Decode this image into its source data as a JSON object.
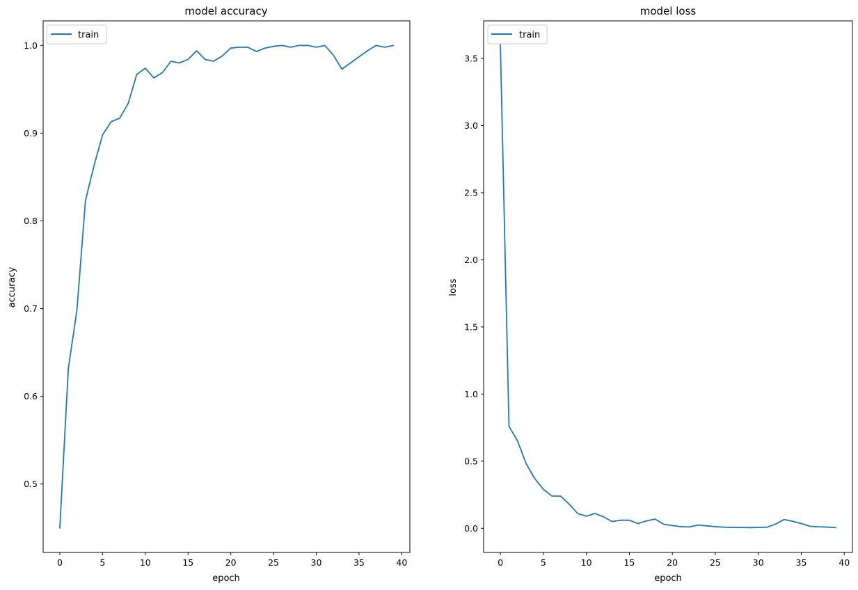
{
  "chart_data": [
    {
      "type": "line",
      "title": "model accuracy",
      "xlabel": "epoch",
      "ylabel": "accuracy",
      "xlim": [
        -1.95,
        40.95
      ],
      "ylim": [
        0.422,
        1.028
      ],
      "xticks": [
        0,
        5,
        10,
        15,
        20,
        25,
        30,
        35,
        40
      ],
      "xtick_labels": [
        "0",
        "5",
        "10",
        "15",
        "20",
        "25",
        "30",
        "35",
        "40"
      ],
      "yticks": [
        0.5,
        0.6,
        0.7,
        0.8,
        0.9,
        1.0
      ],
      "ytick_labels": [
        "0.5",
        "0.6",
        "0.7",
        "0.8",
        "0.9",
        "1.0"
      ],
      "legend": {
        "entries": [
          "train"
        ],
        "placement": "upper left"
      },
      "grid": false,
      "series": [
        {
          "name": "train",
          "color": "#1f77b4",
          "x": [
            0,
            1,
            2,
            3,
            4,
            5,
            6,
            7,
            8,
            9,
            10,
            11,
            12,
            13,
            14,
            15,
            16,
            17,
            18,
            19,
            20,
            21,
            22,
            23,
            24,
            25,
            26,
            27,
            28,
            29,
            30,
            31,
            32,
            33,
            34,
            35,
            36,
            37,
            38,
            39
          ],
          "values": [
            0.45,
            0.632,
            0.698,
            0.823,
            0.863,
            0.898,
            0.913,
            0.917,
            0.934,
            0.967,
            0.974,
            0.963,
            0.969,
            0.982,
            0.98,
            0.984,
            0.994,
            0.984,
            0.982,
            0.988,
            0.997,
            0.998,
            0.998,
            0.993,
            0.997,
            0.999,
            1.0,
            0.998,
            1.0,
            1.0,
            0.998,
            1.0,
            0.989,
            0.973,
            0.98,
            0.987,
            0.994,
            1.0,
            0.998,
            1.0
          ]
        }
      ]
    },
    {
      "type": "line",
      "title": "model loss",
      "xlabel": "epoch",
      "ylabel": "loss",
      "xlim": [
        -1.95,
        40.95
      ],
      "ylim": [
        -0.18,
        3.78
      ],
      "xticks": [
        0,
        5,
        10,
        15,
        20,
        25,
        30,
        35,
        40
      ],
      "xtick_labels": [
        "0",
        "5",
        "10",
        "15",
        "20",
        "25",
        "30",
        "35",
        "40"
      ],
      "yticks": [
        0.0,
        0.5,
        1.0,
        1.5,
        2.0,
        2.5,
        3.0,
        3.5
      ],
      "ytick_labels": [
        "0.0",
        "0.5",
        "1.0",
        "1.5",
        "2.0",
        "2.5",
        "3.0",
        "3.5"
      ],
      "legend": {
        "entries": [
          "train"
        ],
        "placement": "upper left"
      },
      "grid": false,
      "series": [
        {
          "name": "train",
          "color": "#1f77b4",
          "x": [
            0,
            1,
            2,
            3,
            4,
            5,
            6,
            7,
            8,
            9,
            10,
            11,
            12,
            13,
            14,
            15,
            16,
            17,
            18,
            19,
            20,
            21,
            22,
            23,
            24,
            25,
            26,
            27,
            28,
            29,
            30,
            31,
            32,
            33,
            34,
            35,
            36,
            37,
            38,
            39
          ],
          "values": [
            3.6,
            0.76,
            0.65,
            0.48,
            0.37,
            0.29,
            0.24,
            0.24,
            0.18,
            0.11,
            0.09,
            0.11,
            0.085,
            0.05,
            0.06,
            0.06,
            0.035,
            0.055,
            0.068,
            0.03,
            0.02,
            0.012,
            0.01,
            0.024,
            0.018,
            0.012,
            0.008,
            0.007,
            0.006,
            0.005,
            0.006,
            0.008,
            0.031,
            0.065,
            0.052,
            0.035,
            0.015,
            0.011,
            0.009,
            0.005
          ]
        }
      ]
    }
  ]
}
